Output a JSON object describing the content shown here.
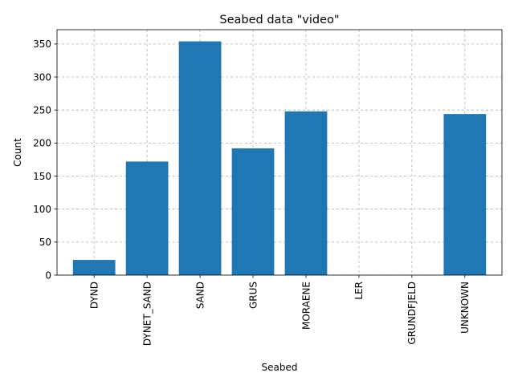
{
  "chart_data": {
    "type": "bar",
    "title": "Seabed data \"video\"",
    "xlabel": "Seabed",
    "ylabel": "Count",
    "categories": [
      "DYND",
      "DYNET_SAND",
      "SAND",
      "GRUS",
      "MORAENE",
      "LER",
      "GRUNDFJELD",
      "UNKNOWN"
    ],
    "values": [
      23,
      172,
      354,
      192,
      248,
      0,
      0,
      244
    ],
    "ylim": [
      0,
      371.7
    ],
    "yticks": [
      0,
      50,
      100,
      150,
      200,
      250,
      300,
      350
    ],
    "grid": true,
    "bar_color": "#1f77b4"
  }
}
